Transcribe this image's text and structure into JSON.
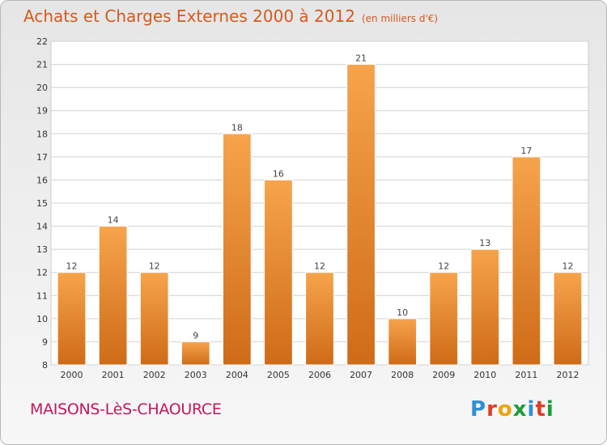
{
  "header": {
    "title": "Achats et Charges Externes 2000 à 2012",
    "subtitle": "(en milliers d'€)"
  },
  "footer": {
    "city": "MAISONS-LèS-CHAOURCE",
    "logo_letters": [
      "P",
      "r",
      "o",
      "x",
      "i",
      "t",
      "i"
    ],
    "logo_colors": [
      "#2e8fd6",
      "#e23c2a",
      "#f2a10c",
      "#1e9b3a",
      "#2e8fd6",
      "#e23c2a",
      "#1e9b3a"
    ]
  },
  "colors": {
    "bar_top": "#f6a44c",
    "bar_bottom": "#cf6b17",
    "grid": "#d0d0d0",
    "title": "#d45a1e",
    "city": "#c2185b"
  },
  "chart_data": {
    "type": "bar",
    "title": "Achats et Charges Externes 2000 à 2012",
    "subtitle": "(en milliers d'€)",
    "categories": [
      "2000",
      "2001",
      "2002",
      "2003",
      "2004",
      "2005",
      "2006",
      "2007",
      "2008",
      "2009",
      "2010",
      "2011",
      "2012"
    ],
    "values": [
      12,
      14,
      12,
      9,
      18,
      16,
      12,
      21,
      10,
      12,
      13,
      17,
      12
    ],
    "ylim": [
      8,
      22
    ],
    "yticks": [
      8,
      9,
      10,
      11,
      12,
      13,
      14,
      15,
      16,
      17,
      18,
      19,
      20,
      21,
      22
    ],
    "grid": true,
    "data_labels": true
  }
}
